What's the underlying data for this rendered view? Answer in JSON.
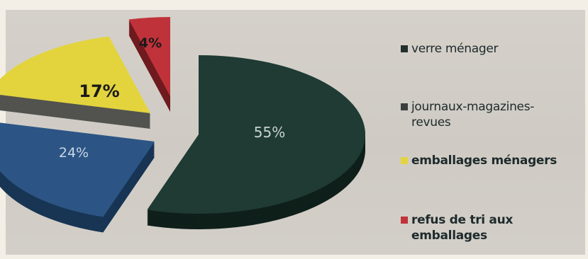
{
  "chart_data": {
    "type": "pie",
    "style": "3d-exploded",
    "slices": [
      {
        "label": "verre ménager",
        "value": 55,
        "display": "55%",
        "color": "#1f3b33",
        "side_color": "#0f1f1a",
        "label_color": "#c9d3cf"
      },
      {
        "label": "journaux-magazines-revues",
        "value": 24,
        "display": "24%",
        "color": "#2c5585",
        "side_color": "#183554",
        "label_color": "#c9d6e6"
      },
      {
        "label": "emballages ménagers",
        "value": 17,
        "display": "17%",
        "color": "#e3d43e",
        "side_color": "#52534e",
        "label_color": "#1a1a1a"
      },
      {
        "label": "refus de tri aux emballages",
        "value": 4,
        "display": "4%",
        "color": "#c0323a",
        "side_color": "#6e1a1e",
        "label_color": "#1a1a1a"
      }
    ],
    "legend": [
      {
        "text": "verre ménager",
        "color": "#22302c"
      },
      {
        "text": "journaux-magazines-revues",
        "color": "#3a3f3e"
      },
      {
        "text": "emballages ménagers",
        "color": "#e3d43e"
      },
      {
        "text": "refus de tri aux emballages",
        "color": "#c0323a"
      }
    ],
    "legend_position": "right"
  }
}
